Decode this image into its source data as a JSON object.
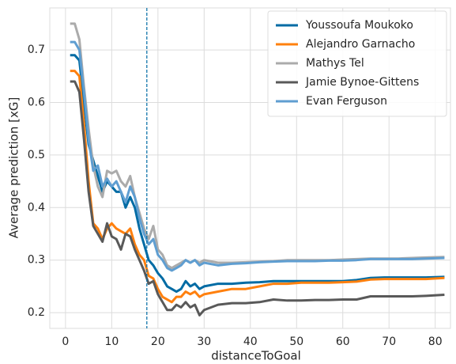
{
  "chart_data": {
    "type": "line",
    "x_label": "distanceToGoal",
    "y_label": "Average prediction [xG]",
    "x": [
      1,
      2,
      3,
      4,
      5,
      6,
      7,
      8,
      9,
      10,
      11,
      12,
      13,
      14,
      15,
      16,
      17,
      18,
      19,
      20,
      21,
      22,
      23,
      24,
      25,
      26,
      27,
      28,
      29,
      30,
      33,
      36,
      39,
      42,
      45,
      48,
      51,
      54,
      57,
      60,
      63,
      66,
      69,
      72,
      75,
      78,
      82
    ],
    "series": [
      {
        "name": "Youssoufa Moukoko",
        "color": "#006ba4",
        "values": [
          0.69,
          0.69,
          0.68,
          0.6,
          0.52,
          0.49,
          0.46,
          0.43,
          0.45,
          0.44,
          0.43,
          0.43,
          0.4,
          0.42,
          0.4,
          0.36,
          0.33,
          0.3,
          0.29,
          0.275,
          0.265,
          0.25,
          0.245,
          0.24,
          0.245,
          0.26,
          0.25,
          0.255,
          0.245,
          0.25,
          0.255,
          0.255,
          0.257,
          0.258,
          0.26,
          0.26,
          0.26,
          0.26,
          0.26,
          0.26,
          0.262,
          0.266,
          0.267,
          0.267,
          0.267,
          0.267,
          0.268
        ]
      },
      {
        "name": "Alejandro Garnacho",
        "color": "#ff800e",
        "values": [
          0.66,
          0.66,
          0.65,
          0.56,
          0.45,
          0.37,
          0.36,
          0.34,
          0.36,
          0.37,
          0.36,
          0.355,
          0.35,
          0.36,
          0.33,
          0.31,
          0.3,
          0.27,
          0.265,
          0.245,
          0.23,
          0.225,
          0.22,
          0.23,
          0.23,
          0.24,
          0.235,
          0.24,
          0.23,
          0.235,
          0.24,
          0.245,
          0.245,
          0.25,
          0.255,
          0.255,
          0.257,
          0.257,
          0.257,
          0.258,
          0.259,
          0.263,
          0.264,
          0.264,
          0.264,
          0.264,
          0.266
        ]
      },
      {
        "name": "Mathys Tel",
        "color": "#ababab",
        "values": [
          0.75,
          0.75,
          0.72,
          0.63,
          0.55,
          0.48,
          0.44,
          0.42,
          0.47,
          0.465,
          0.47,
          0.45,
          0.44,
          0.46,
          0.42,
          0.39,
          0.36,
          0.34,
          0.365,
          0.32,
          0.31,
          0.29,
          0.285,
          0.29,
          0.295,
          0.3,
          0.295,
          0.3,
          0.295,
          0.3,
          0.295,
          0.295,
          0.296,
          0.297,
          0.298,
          0.3,
          0.3,
          0.3,
          0.3,
          0.301,
          0.302,
          0.303,
          0.303,
          0.303,
          0.304,
          0.305,
          0.306
        ]
      },
      {
        "name": "Jamie Bynoe-Gittens",
        "color": "#595959",
        "values": [
          0.64,
          0.64,
          0.62,
          0.53,
          0.43,
          0.365,
          0.35,
          0.335,
          0.37,
          0.345,
          0.34,
          0.32,
          0.35,
          0.345,
          0.32,
          0.3,
          0.28,
          0.255,
          0.26,
          0.235,
          0.22,
          0.205,
          0.205,
          0.215,
          0.21,
          0.22,
          0.21,
          0.215,
          0.195,
          0.205,
          0.215,
          0.218,
          0.218,
          0.22,
          0.225,
          0.223,
          0.223,
          0.224,
          0.224,
          0.225,
          0.225,
          0.231,
          0.231,
          0.231,
          0.231,
          0.232,
          0.234
        ]
      },
      {
        "name": "Evan Ferguson",
        "color": "#5f9ed1",
        "values": [
          0.715,
          0.715,
          0.7,
          0.62,
          0.53,
          0.47,
          0.48,
          0.44,
          0.455,
          0.44,
          0.45,
          0.43,
          0.41,
          0.44,
          0.42,
          0.38,
          0.35,
          0.33,
          0.34,
          0.31,
          0.3,
          0.285,
          0.28,
          0.285,
          0.29,
          0.3,
          0.295,
          0.3,
          0.29,
          0.295,
          0.29,
          0.293,
          0.294,
          0.296,
          0.297,
          0.298,
          0.298,
          0.298,
          0.299,
          0.299,
          0.3,
          0.302,
          0.302,
          0.302,
          0.302,
          0.303,
          0.304
        ]
      }
    ],
    "vline": {
      "x": 17.6,
      "color": "#006ba4"
    },
    "xlim": [
      -3.4,
      83.3
    ],
    "ylim": [
      0.17,
      0.78
    ],
    "xticks": [
      0,
      10,
      20,
      30,
      40,
      50,
      60,
      70,
      80
    ],
    "yticks": [
      0.2,
      0.3,
      0.4,
      0.5,
      0.6,
      0.7
    ],
    "grid": true,
    "legend": "upper right"
  }
}
